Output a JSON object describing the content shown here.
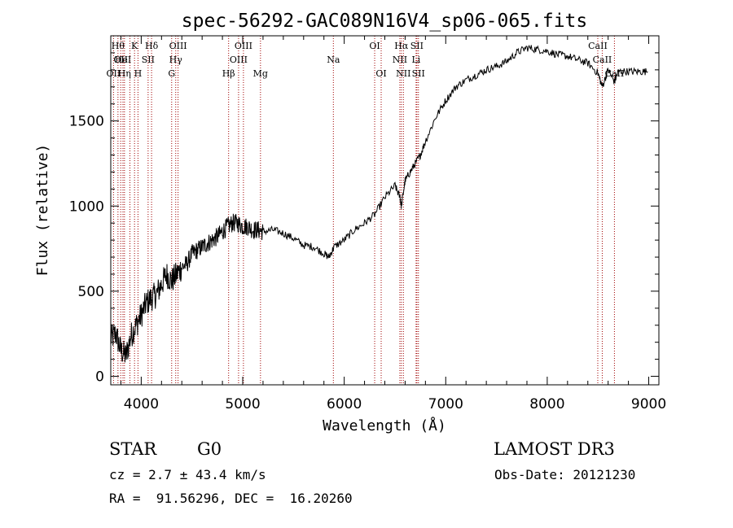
{
  "chart_data": {
    "type": "line",
    "title": "spec-56292-GAC089N16V4_sp06-065.fits",
    "xlabel": "Wavelength (Å)",
    "ylabel": "Flux (relative)",
    "xlim": [
      3700,
      9100
    ],
    "ylim": [
      -50,
      2000
    ],
    "xticks": [
      4000,
      5000,
      6000,
      7000,
      8000,
      9000
    ],
    "yticks": [
      0,
      500,
      1000,
      1500
    ],
    "series": [
      {
        "name": "flux",
        "x": [
          3700,
          3750,
          3800,
          3850,
          3900,
          3950,
          4000,
          4050,
          4100,
          4150,
          4200,
          4250,
          4300,
          4350,
          4400,
          4450,
          4500,
          4550,
          4600,
          4650,
          4700,
          4750,
          4800,
          4850,
          4900,
          4950,
          5000,
          5050,
          5100,
          5150,
          5200,
          5300,
          5400,
          5500,
          5600,
          5700,
          5800,
          5850,
          5900,
          6000,
          6100,
          6200,
          6300,
          6400,
          6500,
          6550,
          6563,
          6600,
          6650,
          6700,
          6750,
          6800,
          6900,
          7000,
          7100,
          7200,
          7300,
          7400,
          7500,
          7600,
          7700,
          7800,
          7900,
          8000,
          8100,
          8200,
          8300,
          8400,
          8500,
          8542,
          8600,
          8662,
          8700,
          8800,
          8900,
          8990
        ],
        "y": [
          220,
          250,
          150,
          120,
          240,
          300,
          360,
          430,
          460,
          480,
          540,
          600,
          560,
          600,
          640,
          660,
          720,
          740,
          760,
          780,
          800,
          820,
          850,
          880,
          900,
          900,
          880,
          880,
          860,
          860,
          850,
          860,
          840,
          810,
          770,
          760,
          720,
          700,
          760,
          800,
          860,
          900,
          950,
          1050,
          1120,
          1050,
          1000,
          1150,
          1200,
          1250,
          1300,
          1380,
          1520,
          1620,
          1700,
          1740,
          1770,
          1800,
          1820,
          1850,
          1900,
          1930,
          1920,
          1910,
          1890,
          1880,
          1860,
          1840,
          1780,
          1700,
          1800,
          1730,
          1790,
          1790,
          1790,
          1790
        ]
      }
    ],
    "lines": [
      {
        "wl": 3771,
        "label": "Hθ",
        "row": 0
      },
      {
        "wl": 3798,
        "label": "OII",
        "row": 1
      },
      {
        "wl": 3727,
        "label": "OII",
        "row": 2
      },
      {
        "wl": 3820,
        "label": "HeI",
        "row": 1
      },
      {
        "wl": 3835,
        "label": "Hη",
        "row": 2
      },
      {
        "wl": 3889,
        "label": "",
        "row": -1
      },
      {
        "wl": 3934,
        "label": "K",
        "row": 0
      },
      {
        "wl": 3968,
        "label": "H",
        "row": 2
      },
      {
        "wl": 4068,
        "label": "SII",
        "row": 1
      },
      {
        "wl": 4102,
        "label": "Hδ",
        "row": 0
      },
      {
        "wl": 4300,
        "label": "G",
        "row": 2
      },
      {
        "wl": 4340,
        "label": "Hγ",
        "row": 1
      },
      {
        "wl": 4363,
        "label": "OIII",
        "row": 0
      },
      {
        "wl": 4861,
        "label": "Hβ",
        "row": 2
      },
      {
        "wl": 4959,
        "label": "OIII",
        "row": 1
      },
      {
        "wl": 5007,
        "label": "OIII",
        "row": 0
      },
      {
        "wl": 5175,
        "label": "Mg",
        "row": 2
      },
      {
        "wl": 5893,
        "label": "Na",
        "row": 1
      },
      {
        "wl": 6300,
        "label": "OI",
        "row": 0
      },
      {
        "wl": 6364,
        "label": "OI",
        "row": 2
      },
      {
        "wl": 6548,
        "label": "NII",
        "row": 1
      },
      {
        "wl": 6563,
        "label": "Hα",
        "row": 0
      },
      {
        "wl": 6583,
        "label": "NII",
        "row": 2
      },
      {
        "wl": 6708,
        "label": "Li",
        "row": 1
      },
      {
        "wl": 6716,
        "label": "SII",
        "row": 0
      },
      {
        "wl": 6731,
        "label": "SII",
        "row": 2
      },
      {
        "wl": 8498,
        "label": "CaII",
        "row": 0
      },
      {
        "wl": 8542,
        "label": "CaII",
        "row": 1
      },
      {
        "wl": 8662,
        "label": "CaII",
        "row": 2
      }
    ]
  },
  "info": {
    "object_class": "STAR",
    "subclass": "G0",
    "survey": "LAMOST DR3",
    "redshift_line": "cz = 2.7 ± 43.4 km/s",
    "obs_date": "Obs-Date: 20121230",
    "coords": "RA =  91.56296, DEC =  16.20260"
  },
  "colors": {
    "axis": "#000000",
    "line_marker": "#a00000",
    "spectrum": "#000000"
  }
}
